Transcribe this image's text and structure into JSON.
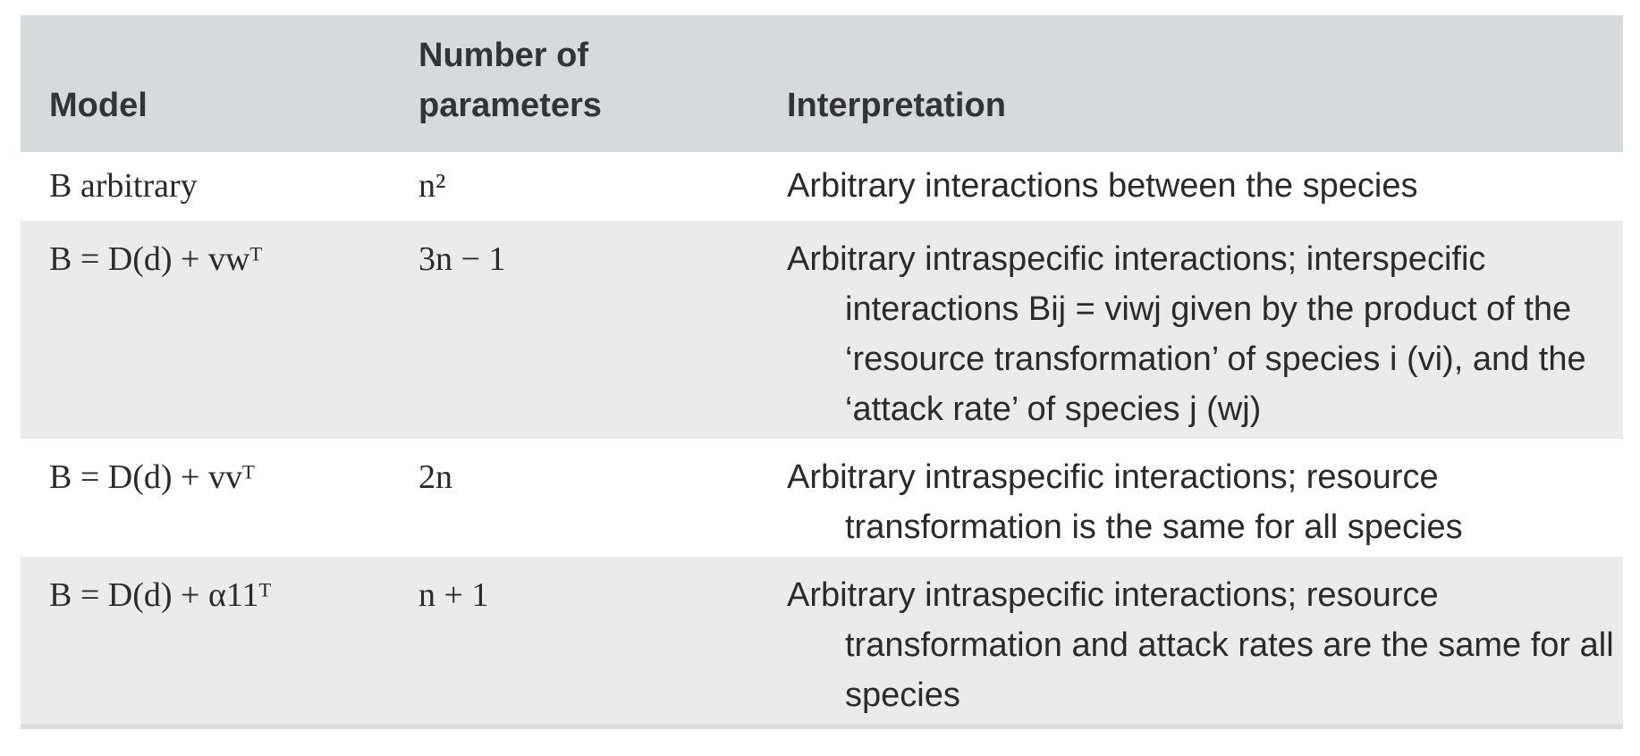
{
  "table": {
    "headers": {
      "model": "Model",
      "params_line1": "Number of",
      "params_line2": "parameters",
      "interpretation": "Interpretation"
    },
    "rows": [
      {
        "model": "B arbitrary",
        "params": "n²",
        "interpretation": "Arbitrary interactions between the species"
      },
      {
        "model": "B = D(d) + vwᵀ",
        "params": "3n − 1",
        "interpretation": "Arbitrary intraspecific interactions; interspecific interactions Bij = viwj given by the product of the ‘resource transformation’ of species i (vi), and the ‘attack rate’ of species j (wj)"
      },
      {
        "model": "B = D(d) + vvᵀ",
        "params": "2n",
        "interpretation": "Arbitrary intraspecific interactions; resource transformation is the same for all species"
      },
      {
        "model": "B = D(d) + α11ᵀ",
        "params": "n + 1",
        "interpretation": "Arbitrary intraspecific interactions; resource transformation and attack rates are the same for all species"
      }
    ]
  }
}
